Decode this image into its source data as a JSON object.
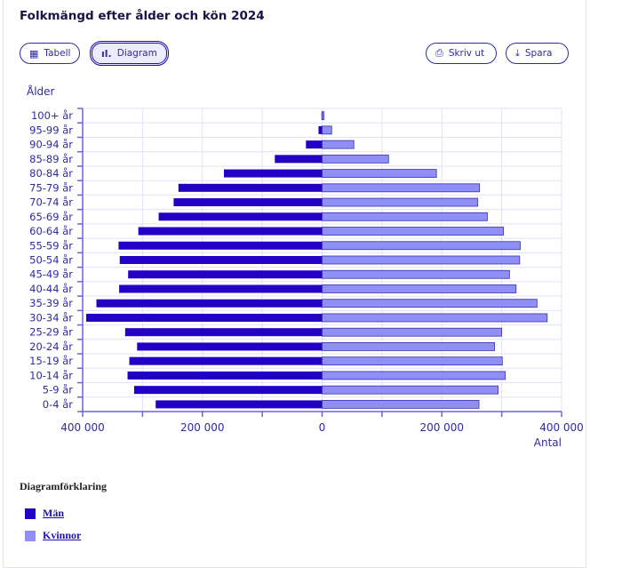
{
  "title": "Folkmängd efter ålder och kön 2024",
  "toolbar": {
    "table": "Tabell",
    "chart": "Diagram",
    "print": "Skriv ut",
    "save": "Spara"
  },
  "legend": {
    "title": "Diagramförklaring"
  },
  "colors": {
    "men": "#2200c4",
    "women": "#8f8ff5",
    "accent": "#2f2a9e"
  },
  "chart_data": {
    "type": "bar",
    "orientation": "horizontal-population-pyramid",
    "ylabel": "Ålder",
    "xlabel": "Antal",
    "categories": [
      "100+ år",
      "95-99 år",
      "90-94 år",
      "85-89 år",
      "80-84 år",
      "75-79 år",
      "70-74 år",
      "65-69 år",
      "60-64 år",
      "55-59 år",
      "50-54 år",
      "45-49 år",
      "40-44 år",
      "35-39 år",
      "30-34 år",
      "25-29 år",
      "20-24 år",
      "15-19 år",
      "10-14 år",
      "5-9 år",
      "0-4 år"
    ],
    "series": [
      {
        "name": "Män",
        "values": [
          1000,
          6000,
          27000,
          79000,
          164000,
          240000,
          248000,
          273000,
          307000,
          340000,
          338000,
          324000,
          339000,
          377000,
          394000,
          329000,
          309000,
          322000,
          325000,
          314000,
          278000
        ]
      },
      {
        "name": "Kvinnor",
        "values": [
          3000,
          16000,
          53000,
          111000,
          191000,
          263000,
          260000,
          276000,
          303000,
          331000,
          330000,
          313000,
          324000,
          359000,
          376000,
          300000,
          288000,
          301000,
          306000,
          294000,
          262000
        ]
      }
    ],
    "xlim": [
      -400000,
      400000
    ],
    "xticks": [
      "400 000",
      "200 000",
      "0",
      "200 000",
      "400 000"
    ],
    "grid": true,
    "legend_placement": "bottom"
  }
}
